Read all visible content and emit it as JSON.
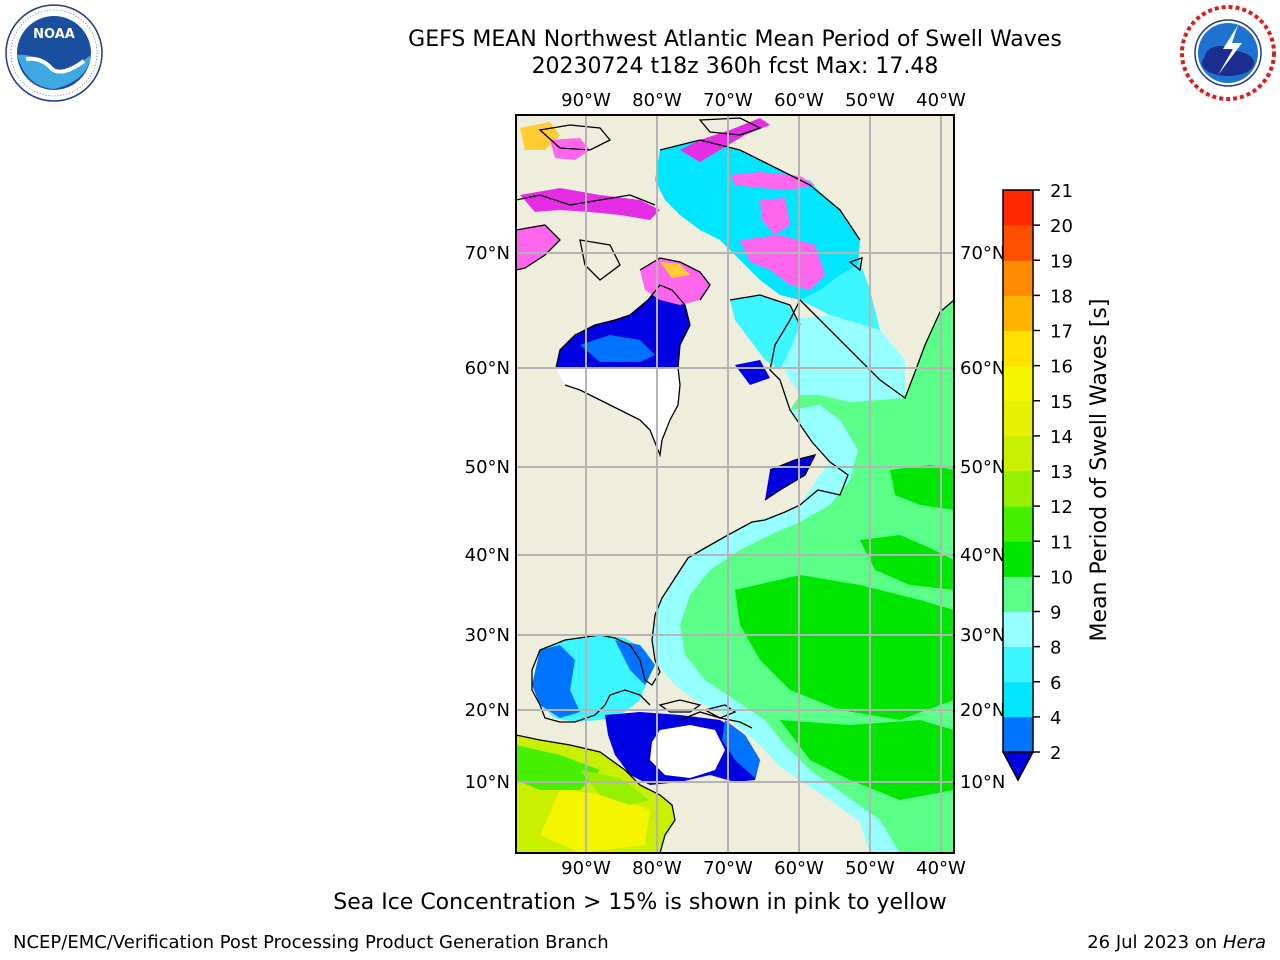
{
  "header": {
    "title_line1": "GEFS MEAN Northwest Atlantic Mean Period of Swell Waves",
    "title_line2": "20230724 t18z 360h fcst   Max: 17.48"
  },
  "logos": {
    "left": "noaa-logo",
    "right": "national-weather-service-logo"
  },
  "map": {
    "lon_labels": [
      "90°W",
      "80°W",
      "70°W",
      "60°W",
      "50°W",
      "40°W"
    ],
    "lat_labels": [
      "70°N",
      "60°N",
      "50°N",
      "40°N",
      "30°N",
      "20°N",
      "10°N"
    ],
    "colors": {
      "land": "#efeddc",
      "no_data": "#ffffff",
      "ice_pink": "#ff66ee",
      "ice_magenta": "#e62de6",
      "ice_yellow": "#ffcc33",
      "grid": "#b4b4b4"
    }
  },
  "colorbar": {
    "label": "Mean Period of Swell Waves [s]",
    "ticks": [
      "2",
      "4",
      "6",
      "8",
      "9",
      "10",
      "11",
      "12",
      "13",
      "14",
      "15",
      "16",
      "17",
      "18",
      "19",
      "20",
      "21"
    ],
    "extend": "min",
    "under_color": "#0000e0",
    "colors": [
      "#0073ff",
      "#00e6ff",
      "#3cf5ff",
      "#96ffff",
      "#5aff87",
      "#00e600",
      "#46f000",
      "#96f000",
      "#c8f000",
      "#e6f000",
      "#f5f500",
      "#ffe100",
      "#ffb400",
      "#ff8c00",
      "#ff5000",
      "#ff2800",
      "#ff0000"
    ]
  },
  "note": "Sea Ice Concentration > 15% is shown in pink to yellow",
  "footer": {
    "left": "NCEP/EMC/Verification Post Processing Product Generation Branch",
    "right_date": "26 Jul 2023 on ",
    "right_host": "Hera"
  }
}
